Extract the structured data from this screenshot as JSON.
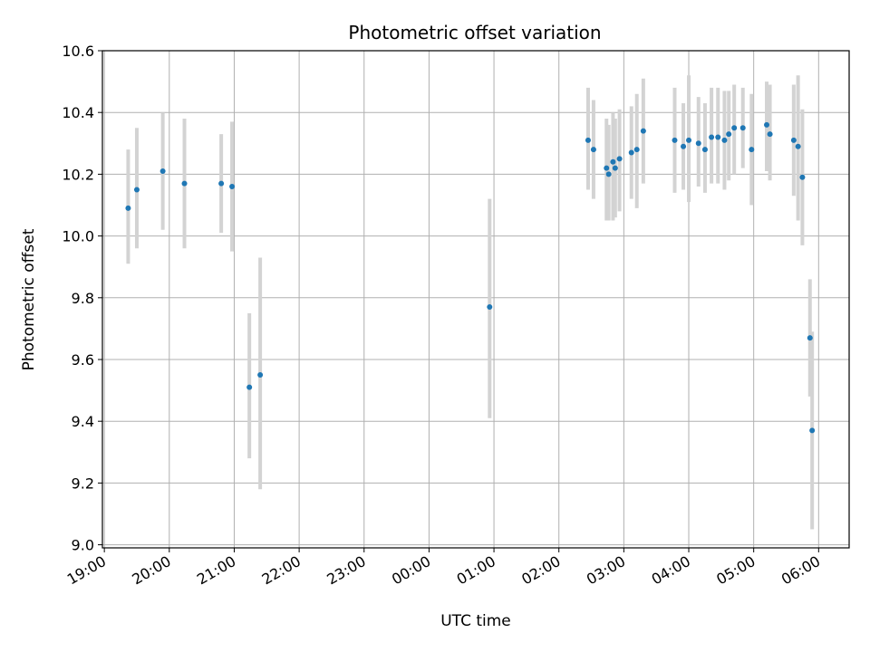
{
  "chart_data": {
    "type": "scatter",
    "title": "Photometric offset variation",
    "xlabel": "UTC time",
    "ylabel": "Photometric offset",
    "ylim": [
      8.99,
      10.6
    ],
    "xlim_hours": [
      18.97,
      30.47
    ],
    "x_axis_kind": "time",
    "x_ticks": [
      {
        "h": 19,
        "label": "19:00"
      },
      {
        "h": 20,
        "label": "20:00"
      },
      {
        "h": 21,
        "label": "21:00"
      },
      {
        "h": 22,
        "label": "22:00"
      },
      {
        "h": 23,
        "label": "23:00"
      },
      {
        "h": 24,
        "label": "00:00"
      },
      {
        "h": 25,
        "label": "01:00"
      },
      {
        "h": 26,
        "label": "02:00"
      },
      {
        "h": 27,
        "label": "03:00"
      },
      {
        "h": 28,
        "label": "04:00"
      },
      {
        "h": 29,
        "label": "05:00"
      },
      {
        "h": 30,
        "label": "06:00"
      }
    ],
    "y_ticks": [
      {
        "v": 9.0,
        "label": "9.0"
      },
      {
        "v": 9.2,
        "label": "9.2"
      },
      {
        "v": 9.4,
        "label": "9.4"
      },
      {
        "v": 9.6,
        "label": "9.6"
      },
      {
        "v": 9.8,
        "label": "9.8"
      },
      {
        "v": 10.0,
        "label": "10.0"
      },
      {
        "v": 10.2,
        "label": "10.2"
      },
      {
        "v": 10.4,
        "label": "10.4"
      },
      {
        "v": 10.6,
        "label": "10.6"
      }
    ],
    "grid": true,
    "marker_color": "#1f77b4",
    "errorbar_color": "#d3d3d3",
    "points": [
      {
        "t": "19:22",
        "y": 10.09,
        "lo": 9.91,
        "hi": 10.28
      },
      {
        "t": "19:30",
        "y": 10.15,
        "lo": 9.96,
        "hi": 10.35
      },
      {
        "t": "19:54",
        "y": 10.21,
        "lo": 10.02,
        "hi": 10.4
      },
      {
        "t": "20:14",
        "y": 10.17,
        "lo": 9.96,
        "hi": 10.38
      },
      {
        "t": "20:48",
        "y": 10.17,
        "lo": 10.01,
        "hi": 10.33
      },
      {
        "t": "20:58",
        "y": 10.16,
        "lo": 9.95,
        "hi": 10.37
      },
      {
        "t": "21:14",
        "y": 9.51,
        "lo": 9.28,
        "hi": 9.75
      },
      {
        "t": "21:24",
        "y": 9.55,
        "lo": 9.18,
        "hi": 9.93
      },
      {
        "t": "00:56",
        "y": 9.77,
        "lo": 9.41,
        "hi": 10.12
      },
      {
        "t": "02:27",
        "y": 10.31,
        "lo": 10.15,
        "hi": 10.48
      },
      {
        "t": "02:32",
        "y": 10.28,
        "lo": 10.12,
        "hi": 10.44
      },
      {
        "t": "02:44",
        "y": 10.22,
        "lo": 10.05,
        "hi": 10.38
      },
      {
        "t": "02:46",
        "y": 10.2,
        "lo": 10.05,
        "hi": 10.36
      },
      {
        "t": "02:50",
        "y": 10.24,
        "lo": 10.05,
        "hi": 10.4
      },
      {
        "t": "02:52",
        "y": 10.22,
        "lo": 10.06,
        "hi": 10.38
      },
      {
        "t": "02:56",
        "y": 10.25,
        "lo": 10.08,
        "hi": 10.41
      },
      {
        "t": "03:07",
        "y": 10.27,
        "lo": 10.12,
        "hi": 10.42
      },
      {
        "t": "03:12",
        "y": 10.28,
        "lo": 10.09,
        "hi": 10.46
      },
      {
        "t": "03:18",
        "y": 10.34,
        "lo": 10.17,
        "hi": 10.51
      },
      {
        "t": "03:47",
        "y": 10.31,
        "lo": 10.14,
        "hi": 10.48
      },
      {
        "t": "03:55",
        "y": 10.29,
        "lo": 10.15,
        "hi": 10.43
      },
      {
        "t": "04:00",
        "y": 10.31,
        "lo": 10.11,
        "hi": 10.52
      },
      {
        "t": "04:09",
        "y": 10.3,
        "lo": 10.16,
        "hi": 10.45
      },
      {
        "t": "04:15",
        "y": 10.28,
        "lo": 10.14,
        "hi": 10.43
      },
      {
        "t": "04:21",
        "y": 10.32,
        "lo": 10.17,
        "hi": 10.48
      },
      {
        "t": "04:27",
        "y": 10.32,
        "lo": 10.17,
        "hi": 10.48
      },
      {
        "t": "04:33",
        "y": 10.31,
        "lo": 10.15,
        "hi": 10.47
      },
      {
        "t": "04:37",
        "y": 10.33,
        "lo": 10.18,
        "hi": 10.47
      },
      {
        "t": "04:42",
        "y": 10.35,
        "lo": 10.2,
        "hi": 10.49
      },
      {
        "t": "04:50",
        "y": 10.35,
        "lo": 10.22,
        "hi": 10.48
      },
      {
        "t": "04:58",
        "y": 10.28,
        "lo": 10.1,
        "hi": 10.46
      },
      {
        "t": "05:12",
        "y": 10.36,
        "lo": 10.21,
        "hi": 10.5
      },
      {
        "t": "05:15",
        "y": 10.33,
        "lo": 10.18,
        "hi": 10.49
      },
      {
        "t": "05:37",
        "y": 10.31,
        "lo": 10.13,
        "hi": 10.49
      },
      {
        "t": "05:41",
        "y": 10.29,
        "lo": 10.05,
        "hi": 10.52
      },
      {
        "t": "05:45",
        "y": 10.19,
        "lo": 9.97,
        "hi": 10.41
      },
      {
        "t": "05:52",
        "y": 9.67,
        "lo": 9.48,
        "hi": 9.86
      },
      {
        "t": "05:54",
        "y": 9.37,
        "lo": 9.05,
        "hi": 9.69
      }
    ]
  }
}
